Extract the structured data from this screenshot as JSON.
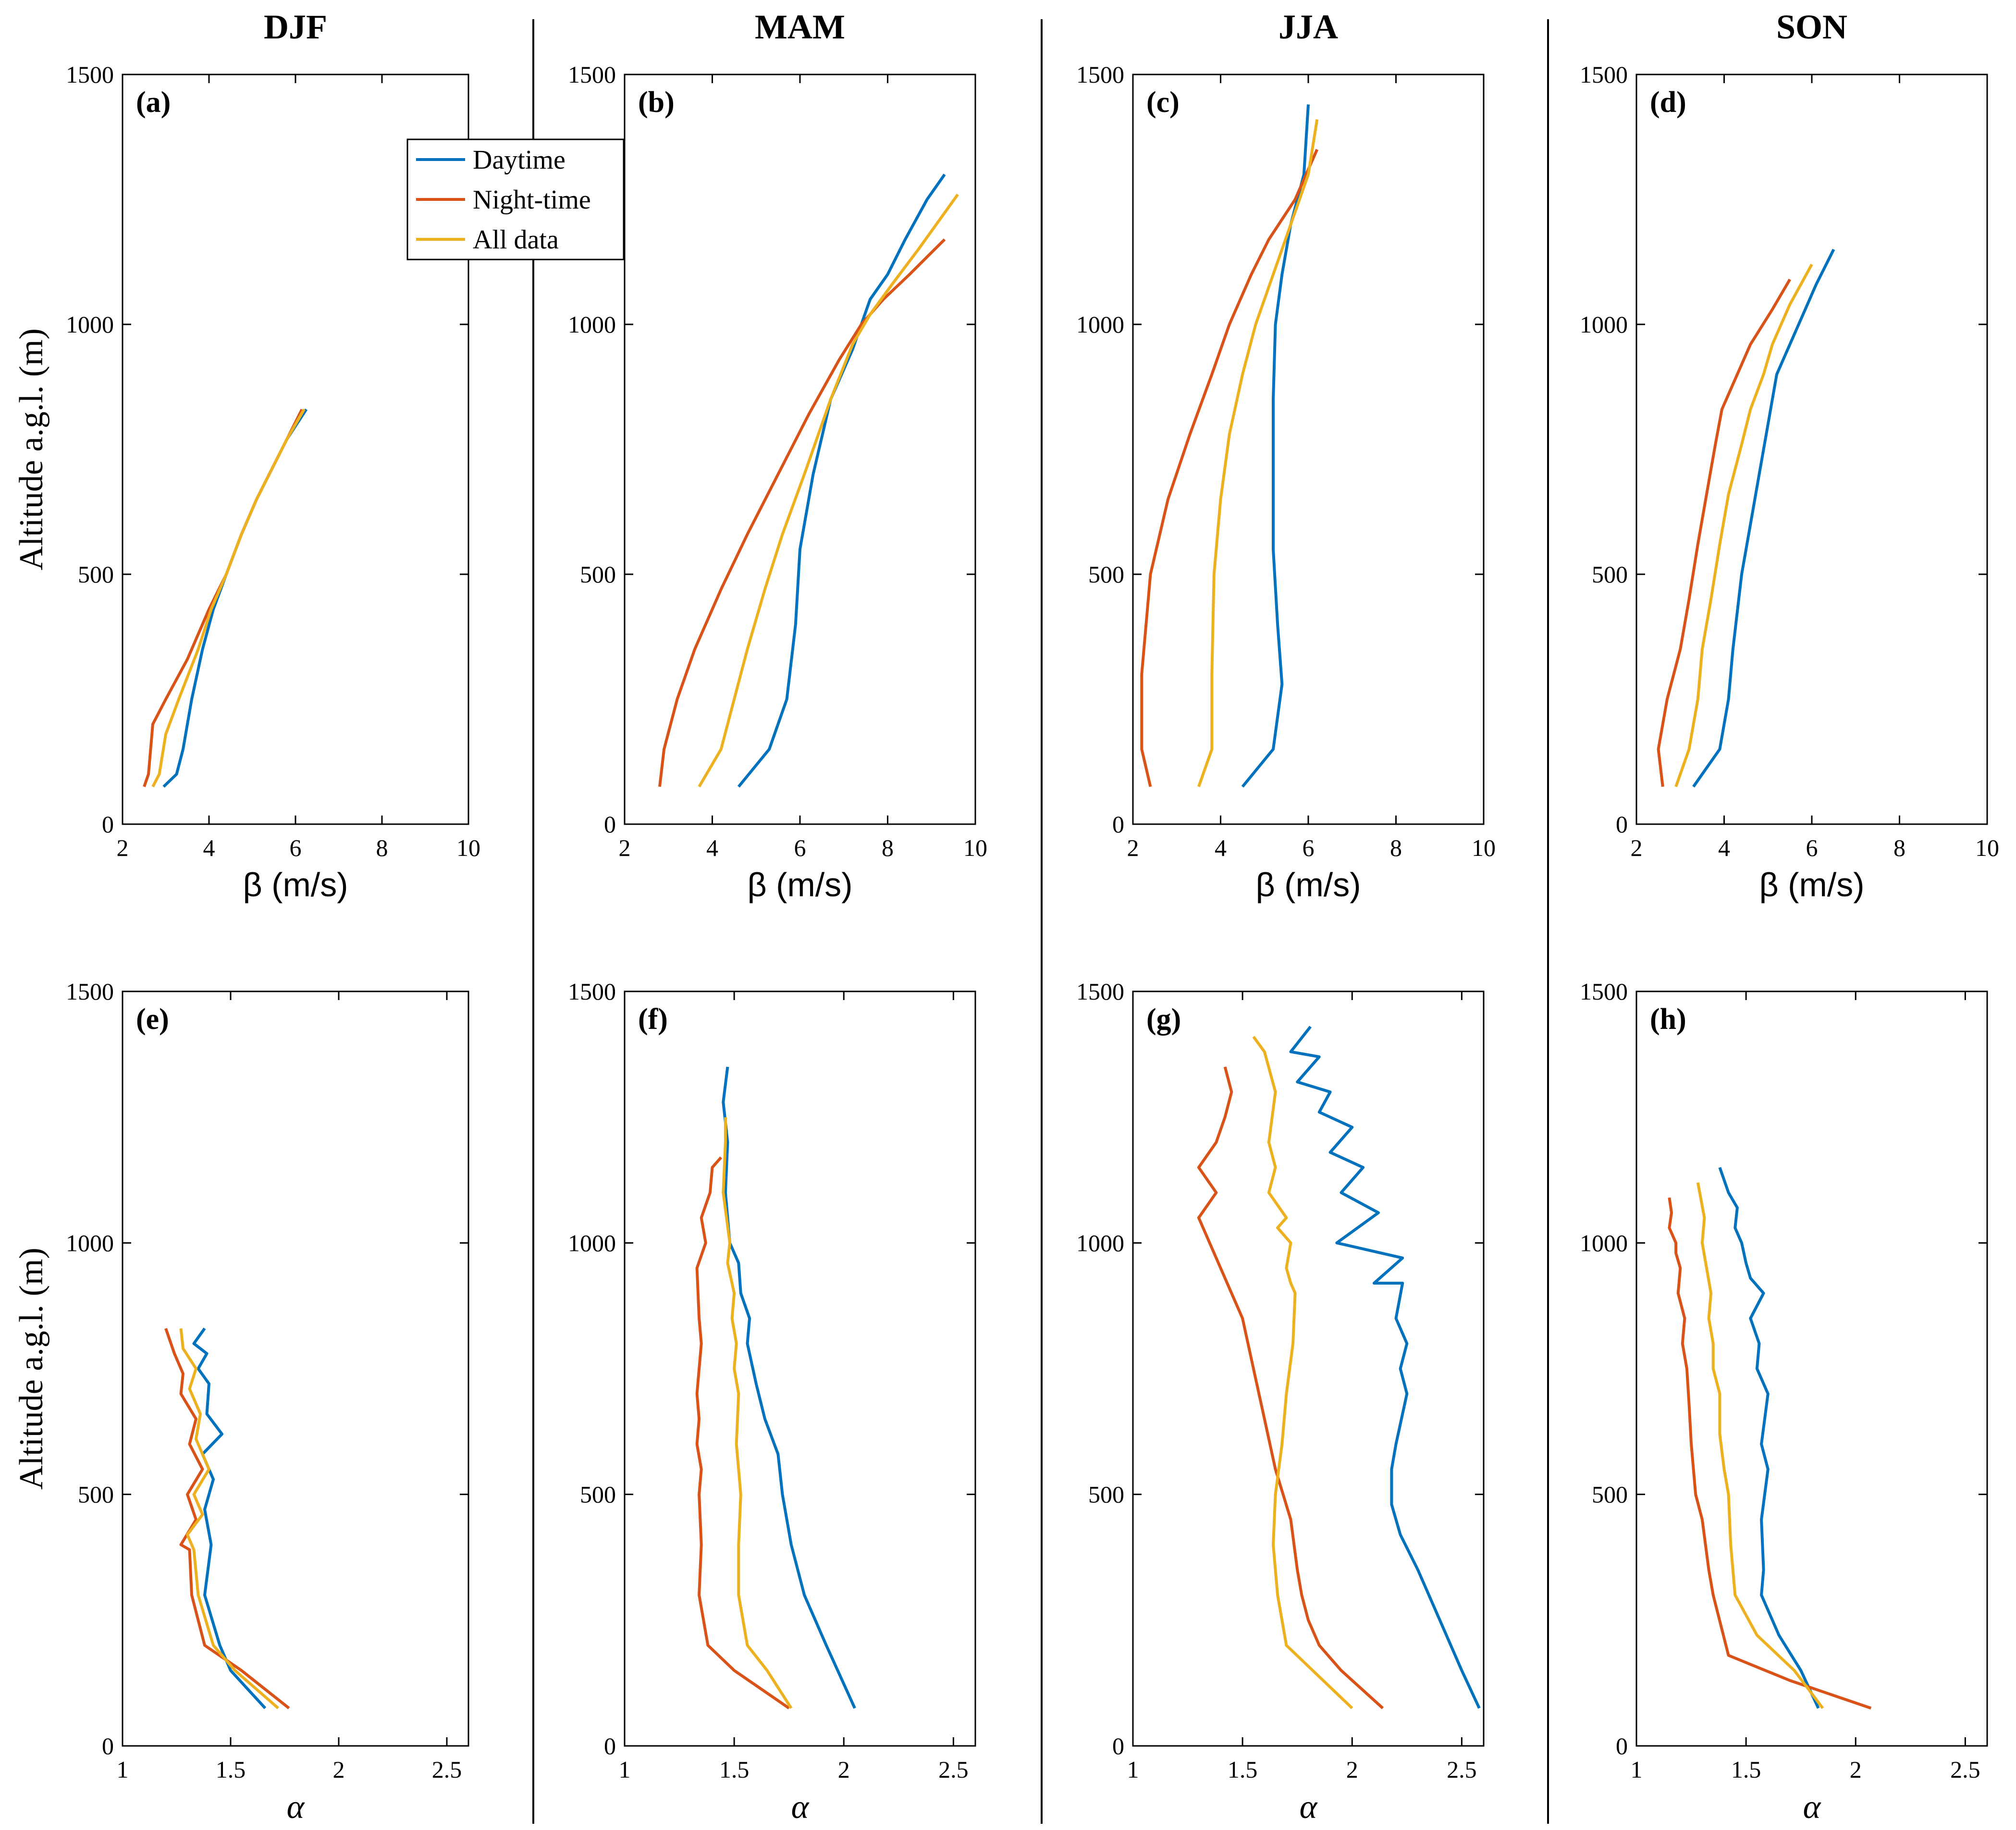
{
  "colors": {
    "daytime": "#0072BD",
    "night": "#D95319",
    "all": "#EDB120"
  },
  "legend": {
    "daytime": "Daytime",
    "night": "Night-time",
    "all": "All data"
  },
  "chart_data": [
    {
      "panel": "(a)",
      "season": "DJF",
      "type": "line",
      "xlabel": "β (m/s)",
      "ylabel": "Altitude a.g.l. (m)",
      "xlim": [
        2,
        10
      ],
      "ylim": [
        0,
        1500
      ],
      "xticks": [
        "2",
        "4",
        "6",
        "8",
        "10"
      ],
      "yticks": [
        "0",
        "500",
        "1000",
        "1500"
      ],
      "series": [
        {
          "key": "daytime",
          "name": "Daytime",
          "x": [
            2.95,
            3.25,
            3.4,
            3.6,
            3.85,
            4.1,
            4.4,
            4.75,
            5.1,
            5.45,
            5.8,
            6.25
          ],
          "y": [
            75,
            100,
            150,
            250,
            350,
            430,
            500,
            580,
            650,
            710,
            770,
            830
          ]
        },
        {
          "key": "night",
          "name": "Night-time",
          "x": [
            2.5,
            2.6,
            2.7,
            3.0,
            3.5,
            4.0,
            4.4,
            4.75,
            5.1,
            5.45,
            5.8,
            6.15
          ],
          "y": [
            75,
            100,
            200,
            250,
            330,
            430,
            500,
            580,
            650,
            710,
            770,
            830
          ]
        },
        {
          "key": "all",
          "name": "All data",
          "x": [
            2.7,
            2.85,
            3.0,
            3.3,
            3.75,
            4.05,
            4.4,
            4.75,
            5.1,
            5.45,
            5.8,
            6.2
          ],
          "y": [
            75,
            100,
            180,
            250,
            350,
            430,
            500,
            580,
            650,
            710,
            770,
            830
          ]
        }
      ]
    },
    {
      "panel": "(b)",
      "season": "MAM",
      "type": "line",
      "xlabel": "β (m/s)",
      "ylabel": "",
      "xlim": [
        2,
        10
      ],
      "ylim": [
        0,
        1500
      ],
      "xticks": [
        "2",
        "4",
        "6",
        "8",
        "10"
      ],
      "yticks": [
        "0",
        "500",
        "1000",
        "1500"
      ],
      "series": [
        {
          "key": "daytime",
          "name": "Daytime",
          "x": [
            4.6,
            5.3,
            5.7,
            5.9,
            6.0,
            6.3,
            6.7,
            7.2,
            7.6,
            8.0,
            8.4,
            8.9,
            9.3
          ],
          "y": [
            75,
            150,
            250,
            400,
            550,
            700,
            850,
            950,
            1050,
            1100,
            1170,
            1250,
            1300
          ]
        },
        {
          "key": "night",
          "name": "Night-time",
          "x": [
            2.8,
            2.9,
            3.2,
            3.6,
            4.2,
            4.8,
            5.5,
            6.2,
            6.9,
            7.4,
            7.9,
            8.5,
            9.3
          ],
          "y": [
            75,
            150,
            250,
            350,
            470,
            580,
            700,
            820,
            930,
            1000,
            1050,
            1100,
            1170
          ]
        },
        {
          "key": "all",
          "name": "All data",
          "x": [
            3.7,
            4.2,
            4.5,
            4.8,
            5.2,
            5.6,
            6.1,
            6.7,
            7.2,
            7.6,
            8.1,
            8.7,
            9.6
          ],
          "y": [
            75,
            150,
            250,
            350,
            470,
            580,
            700,
            850,
            960,
            1020,
            1080,
            1150,
            1260
          ]
        }
      ]
    },
    {
      "panel": "(c)",
      "season": "JJA",
      "type": "line",
      "xlabel": "β (m/s)",
      "ylabel": "",
      "xlim": [
        2,
        10
      ],
      "ylim": [
        0,
        1500
      ],
      "xticks": [
        "2",
        "4",
        "6",
        "8",
        "10"
      ],
      "yticks": [
        "0",
        "500",
        "1000",
        "1500"
      ],
      "series": [
        {
          "key": "daytime",
          "name": "Daytime",
          "x": [
            4.5,
            5.2,
            5.4,
            5.3,
            5.2,
            5.2,
            5.2,
            5.25,
            5.4,
            5.6,
            5.9,
            6.0
          ],
          "y": [
            75,
            150,
            280,
            400,
            550,
            700,
            850,
            1000,
            1100,
            1200,
            1300,
            1440
          ]
        },
        {
          "key": "night",
          "name": "Night-time",
          "x": [
            2.4,
            2.2,
            2.2,
            2.4,
            2.8,
            3.3,
            3.8,
            4.2,
            4.7,
            5.1,
            5.7,
            6.2
          ],
          "y": [
            75,
            150,
            300,
            500,
            650,
            780,
            900,
            1000,
            1100,
            1170,
            1250,
            1350
          ]
        },
        {
          "key": "all",
          "name": "All data",
          "x": [
            3.5,
            3.8,
            3.8,
            3.85,
            4.0,
            4.2,
            4.5,
            4.8,
            5.2,
            5.6,
            6.0,
            6.2
          ],
          "y": [
            75,
            150,
            300,
            500,
            650,
            780,
            900,
            1000,
            1100,
            1200,
            1300,
            1410
          ]
        }
      ]
    },
    {
      "panel": "(d)",
      "season": "SON",
      "type": "line",
      "xlabel": "β (m/s)",
      "ylabel": "",
      "xlim": [
        2,
        10
      ],
      "ylim": [
        0,
        1500
      ],
      "xticks": [
        "2",
        "4",
        "6",
        "8",
        "10"
      ],
      "yticks": [
        "0",
        "500",
        "1000",
        "1500"
      ],
      "series": [
        {
          "key": "daytime",
          "name": "Daytime",
          "x": [
            3.3,
            3.9,
            4.1,
            4.2,
            4.4,
            4.6,
            4.8,
            5.0,
            5.2,
            5.5,
            5.8,
            6.1,
            6.5
          ],
          "y": [
            75,
            150,
            250,
            350,
            500,
            600,
            700,
            800,
            900,
            960,
            1020,
            1080,
            1150
          ]
        },
        {
          "key": "night",
          "name": "Night-time",
          "x": [
            2.6,
            2.5,
            2.7,
            3.0,
            3.2,
            3.4,
            3.6,
            3.8,
            3.95,
            4.3,
            4.6,
            5.1,
            5.5
          ],
          "y": [
            75,
            150,
            250,
            350,
            450,
            560,
            660,
            760,
            830,
            900,
            960,
            1030,
            1090
          ]
        },
        {
          "key": "all",
          "name": "All data",
          "x": [
            2.9,
            3.2,
            3.4,
            3.5,
            3.7,
            3.9,
            4.1,
            4.4,
            4.6,
            4.9,
            5.1,
            5.5,
            6.0
          ],
          "y": [
            75,
            150,
            250,
            350,
            450,
            560,
            660,
            760,
            830,
            900,
            960,
            1040,
            1120
          ]
        }
      ]
    },
    {
      "panel": "(e)",
      "season": "",
      "type": "line",
      "xlabel": "α",
      "ylabel": "Altitude a.g.l. (m)",
      "xlim": [
        1,
        2.6
      ],
      "ylim": [
        0,
        1500
      ],
      "xticks": [
        "1",
        "1.5",
        "2",
        "2.5"
      ],
      "yticks": [
        "0",
        "500",
        "1000",
        "1500"
      ],
      "series": [
        {
          "key": "daytime",
          "name": "Daytime",
          "x": [
            1.66,
            1.5,
            1.45,
            1.38,
            1.41,
            1.38,
            1.42,
            1.37,
            1.46,
            1.39,
            1.4,
            1.35,
            1.39,
            1.33,
            1.38
          ],
          "y": [
            75,
            150,
            200,
            300,
            400,
            470,
            530,
            580,
            620,
            660,
            720,
            750,
            780,
            800,
            830
          ]
        },
        {
          "key": "night",
          "name": "Night-time",
          "x": [
            1.77,
            1.55,
            1.38,
            1.32,
            1.31,
            1.27,
            1.34,
            1.3,
            1.37,
            1.31,
            1.34,
            1.27,
            1.28,
            1.24,
            1.2
          ],
          "y": [
            75,
            150,
            200,
            300,
            390,
            400,
            450,
            500,
            550,
            600,
            650,
            700,
            740,
            780,
            830
          ]
        },
        {
          "key": "all",
          "name": "All data",
          "x": [
            1.72,
            1.52,
            1.42,
            1.35,
            1.33,
            1.3,
            1.37,
            1.33,
            1.4,
            1.34,
            1.36,
            1.31,
            1.34,
            1.28,
            1.27
          ],
          "y": [
            75,
            150,
            200,
            300,
            390,
            420,
            460,
            500,
            550,
            610,
            660,
            710,
            750,
            790,
            830
          ]
        }
      ]
    },
    {
      "panel": "(f)",
      "season": "",
      "type": "line",
      "xlabel": "α",
      "ylabel": "",
      "xlim": [
        1,
        2.6
      ],
      "ylim": [
        0,
        1500
      ],
      "xticks": [
        "1",
        "1.5",
        "2",
        "2.5"
      ],
      "yticks": [
        "0",
        "500",
        "1000",
        "1500"
      ],
      "series": [
        {
          "key": "daytime",
          "name": "Daytime",
          "x": [
            2.05,
            1.92,
            1.82,
            1.76,
            1.72,
            1.7,
            1.64,
            1.6,
            1.56,
            1.57,
            1.53,
            1.52,
            1.48,
            1.46,
            1.47,
            1.45,
            1.47
          ],
          "y": [
            75,
            200,
            300,
            400,
            500,
            580,
            650,
            720,
            800,
            850,
            900,
            960,
            1000,
            1100,
            1200,
            1280,
            1350
          ]
        },
        {
          "key": "night",
          "name": "Night-time",
          "x": [
            1.75,
            1.5,
            1.38,
            1.34,
            1.35,
            1.34,
            1.35,
            1.33,
            1.34,
            1.33,
            1.35,
            1.34,
            1.33,
            1.37,
            1.35,
            1.39,
            1.4,
            1.44
          ],
          "y": [
            75,
            150,
            200,
            300,
            400,
            500,
            550,
            600,
            650,
            700,
            800,
            850,
            950,
            1000,
            1050,
            1100,
            1150,
            1170
          ]
        },
        {
          "key": "all",
          "name": "All data",
          "x": [
            1.76,
            1.65,
            1.56,
            1.52,
            1.52,
            1.53,
            1.51,
            1.52,
            1.5,
            1.51,
            1.49,
            1.5,
            1.47,
            1.48,
            1.45,
            1.46,
            1.46
          ],
          "y": [
            75,
            150,
            200,
            300,
            400,
            500,
            600,
            700,
            750,
            800,
            850,
            900,
            960,
            1000,
            1100,
            1200,
            1250
          ]
        }
      ]
    },
    {
      "panel": "(g)",
      "season": "",
      "type": "line",
      "xlabel": "α",
      "ylabel": "",
      "xlim": [
        1,
        2.6
      ],
      "ylim": [
        0,
        1500
      ],
      "xticks": [
        "1",
        "1.5",
        "2",
        "2.5"
      ],
      "yticks": [
        "0",
        "500",
        "1000",
        "1500"
      ],
      "series": [
        {
          "key": "daytime",
          "name": "Daytime",
          "x": [
            2.58,
            2.5,
            2.4,
            2.3,
            2.22,
            2.18,
            2.18,
            2.2,
            2.25,
            2.22,
            2.25,
            2.2,
            2.23,
            2.1,
            2.23,
            1.93,
            2.12,
            1.95,
            2.05,
            1.9,
            2.0,
            1.85,
            1.9,
            1.75,
            1.85,
            1.72,
            1.81
          ],
          "y": [
            75,
            150,
            250,
            350,
            420,
            480,
            550,
            600,
            700,
            750,
            800,
            850,
            920,
            920,
            970,
            1000,
            1060,
            1100,
            1150,
            1180,
            1230,
            1260,
            1300,
            1320,
            1370,
            1380,
            1430
          ]
        },
        {
          "key": "night",
          "name": "Night-time",
          "x": [
            2.14,
            1.95,
            1.85,
            1.8,
            1.77,
            1.75,
            1.72,
            1.65,
            1.6,
            1.55,
            1.5,
            1.45,
            1.4,
            1.35,
            1.3,
            1.38,
            1.3,
            1.38,
            1.42,
            1.45,
            1.42
          ],
          "y": [
            75,
            150,
            200,
            250,
            300,
            350,
            450,
            550,
            650,
            750,
            850,
            900,
            950,
            1000,
            1050,
            1100,
            1150,
            1200,
            1250,
            1300,
            1350
          ]
        },
        {
          "key": "all",
          "name": "All data",
          "x": [
            2.0,
            1.82,
            1.7,
            1.66,
            1.64,
            1.65,
            1.68,
            1.7,
            1.73,
            1.74,
            1.72,
            1.7,
            1.72,
            1.66,
            1.7,
            1.62,
            1.65,
            1.62,
            1.65,
            1.6,
            1.55
          ],
          "y": [
            75,
            150,
            200,
            300,
            400,
            500,
            600,
            700,
            800,
            900,
            920,
            950,
            1000,
            1030,
            1050,
            1100,
            1150,
            1200,
            1300,
            1380,
            1410
          ]
        }
      ]
    },
    {
      "panel": "(h)",
      "season": "",
      "type": "line",
      "xlabel": "α",
      "ylabel": "",
      "xlim": [
        1,
        2.6
      ],
      "ylim": [
        0,
        1500
      ],
      "xticks": [
        "1",
        "1.5",
        "2",
        "2.5"
      ],
      "yticks": [
        "0",
        "500",
        "1000",
        "1500"
      ],
      "series": [
        {
          "key": "daytime",
          "name": "Daytime",
          "x": [
            1.83,
            1.75,
            1.65,
            1.57,
            1.58,
            1.57,
            1.6,
            1.57,
            1.6,
            1.55,
            1.56,
            1.52,
            1.58,
            1.52,
            1.5,
            1.48,
            1.45,
            1.46,
            1.42,
            1.38
          ],
          "y": [
            75,
            150,
            220,
            300,
            350,
            450,
            550,
            600,
            700,
            750,
            800,
            850,
            900,
            930,
            960,
            1000,
            1030,
            1070,
            1100,
            1150
          ]
        },
        {
          "key": "night",
          "name": "Night-time",
          "x": [
            2.07,
            1.7,
            1.42,
            1.35,
            1.33,
            1.3,
            1.27,
            1.25,
            1.24,
            1.23,
            1.21,
            1.22,
            1.19,
            1.2,
            1.18,
            1.18,
            1.15,
            1.16,
            1.15
          ],
          "y": [
            75,
            130,
            180,
            300,
            350,
            450,
            500,
            600,
            680,
            750,
            800,
            850,
            900,
            950,
            980,
            1000,
            1030,
            1060,
            1090
          ]
        },
        {
          "key": "all",
          "name": "All data",
          "x": [
            1.85,
            1.72,
            1.55,
            1.45,
            1.43,
            1.42,
            1.4,
            1.38,
            1.38,
            1.35,
            1.35,
            1.33,
            1.34,
            1.32,
            1.3,
            1.31,
            1.28
          ],
          "y": [
            75,
            150,
            220,
            300,
            400,
            500,
            550,
            620,
            700,
            750,
            800,
            850,
            900,
            950,
            1000,
            1050,
            1120
          ]
        }
      ]
    }
  ]
}
